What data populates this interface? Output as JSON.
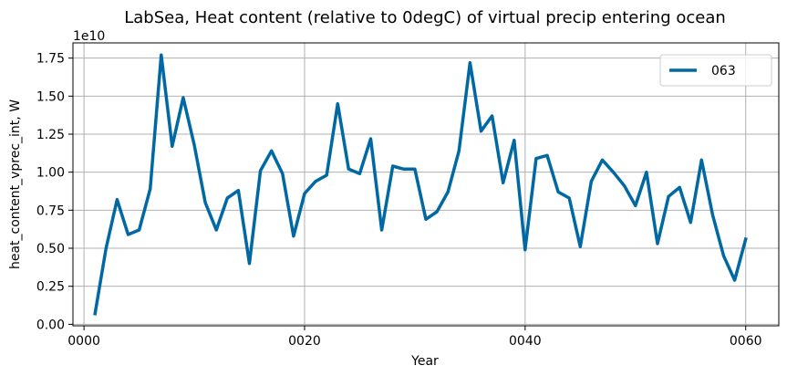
{
  "chart_data": {
    "type": "line",
    "title": "LabSea, Heat content (relative to 0degC) of virtual precip entering ocean",
    "xlabel": "Year",
    "ylabel": "heat_content_vprec_int, W",
    "y_multiplier_label": "1e10",
    "xlim": [
      -1,
      63
    ],
    "ylim": [
      -0.01,
      1.85
    ],
    "x_ticks": [
      0,
      20,
      40,
      60
    ],
    "x_tick_labels": [
      "0000",
      "0020",
      "0040",
      "0060"
    ],
    "y_ticks": [
      0.0,
      0.25,
      0.5,
      0.75,
      1.0,
      1.25,
      1.5,
      1.75
    ],
    "y_tick_labels": [
      "0.00",
      "0.25",
      "0.50",
      "0.75",
      "1.00",
      "1.25",
      "1.50",
      "1.75"
    ],
    "grid": true,
    "legend_position": "top-right",
    "series": [
      {
        "name": "063",
        "color": "#0069a3",
        "x": [
          1,
          2,
          3,
          4,
          5,
          6,
          7,
          8,
          9,
          10,
          11,
          12,
          13,
          14,
          15,
          16,
          17,
          18,
          19,
          20,
          21,
          22,
          23,
          24,
          25,
          26,
          27,
          28,
          29,
          30,
          31,
          32,
          33,
          34,
          35,
          36,
          37,
          38,
          39,
          40,
          41,
          42,
          43,
          44,
          45,
          46,
          47,
          48,
          49,
          50,
          51,
          52,
          53,
          54,
          55,
          56,
          57,
          58,
          59,
          60
        ],
        "values": [
          0.07,
          0.5,
          0.82,
          0.59,
          0.62,
          0.89,
          1.77,
          1.17,
          1.49,
          1.18,
          0.8,
          0.62,
          0.83,
          0.88,
          0.4,
          1.01,
          1.14,
          0.99,
          0.58,
          0.86,
          0.94,
          0.98,
          1.45,
          1.02,
          0.99,
          1.22,
          0.62,
          1.04,
          1.02,
          1.02,
          0.69,
          0.74,
          0.87,
          1.14,
          1.72,
          1.27,
          1.37,
          0.93,
          1.21,
          0.49,
          1.09,
          1.11,
          0.87,
          0.83,
          0.51,
          0.94,
          1.08,
          1.0,
          0.91,
          0.78,
          1.0,
          0.53,
          0.84,
          0.9,
          0.67,
          1.08,
          0.72,
          0.45,
          0.29,
          0.56
        ]
      }
    ]
  }
}
